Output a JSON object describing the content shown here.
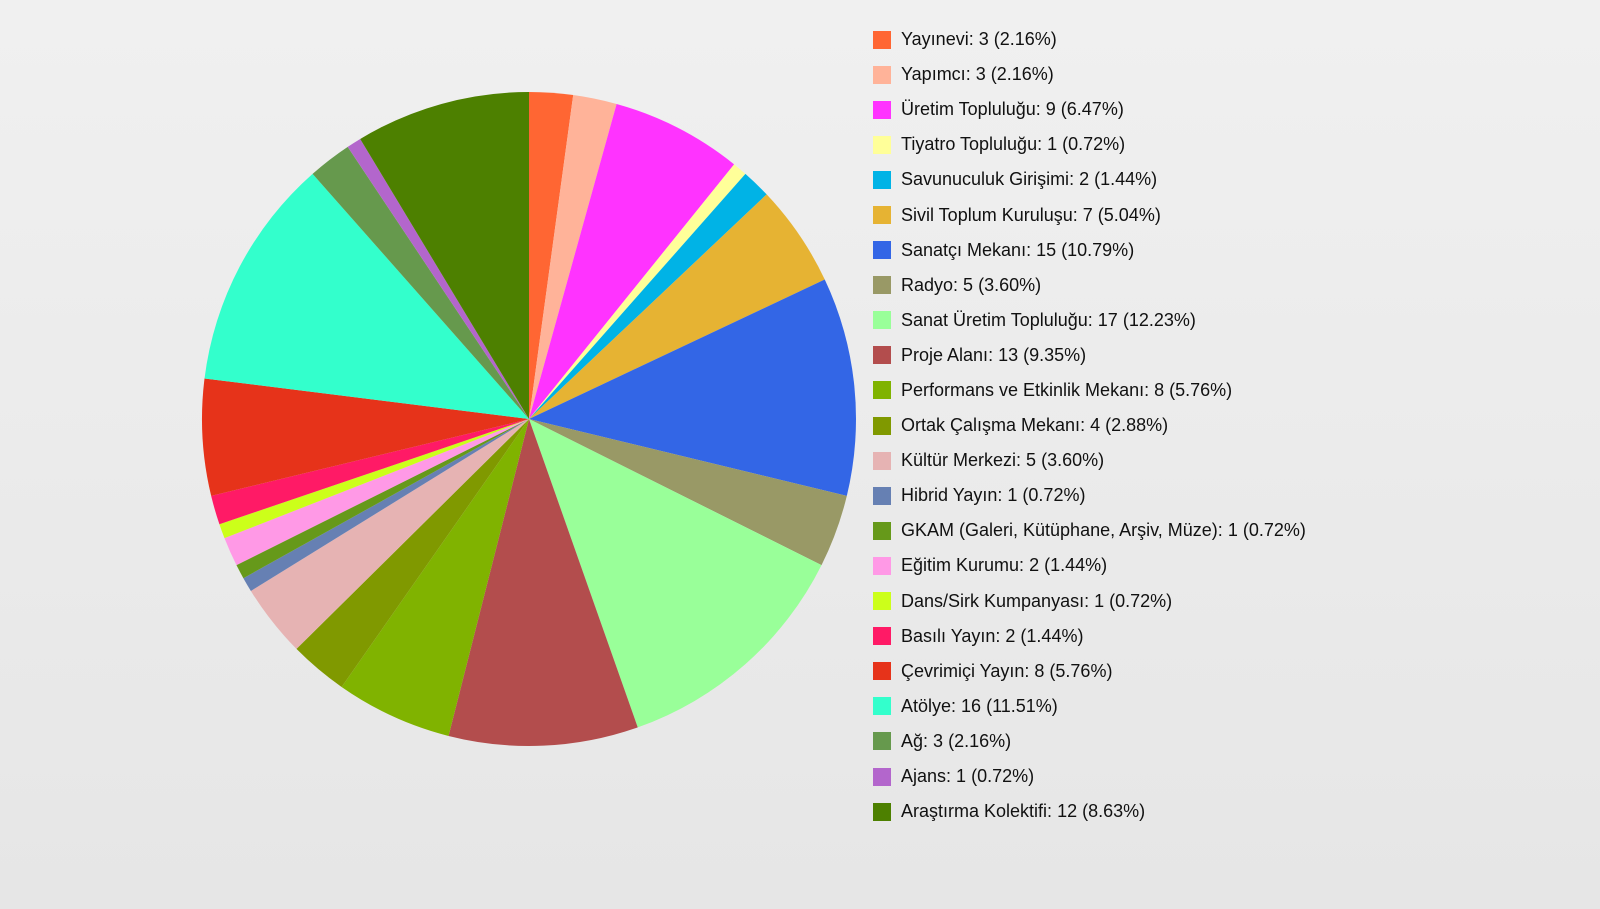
{
  "chart_data": {
    "type": "pie",
    "start": "top",
    "direction": "clockwise",
    "legend_placement": "right",
    "slices": [
      {
        "label": "Yayınevi",
        "value": 3,
        "percent": "2.16%",
        "color": "#ff6633"
      },
      {
        "label": "Yapımcı",
        "value": 3,
        "percent": "2.16%",
        "color": "#ffb399"
      },
      {
        "label": "Üretim Topluluğu",
        "value": 9,
        "percent": "6.47%",
        "color": "#ff33ff"
      },
      {
        "label": "Tiyatro Topluluğu",
        "value": 1,
        "percent": "0.72%",
        "color": "#ffff99"
      },
      {
        "label": "Savunuculuk Girişimi",
        "value": 2,
        "percent": "1.44%",
        "color": "#00b3e6"
      },
      {
        "label": "Sivil Toplum Kuruluşu",
        "value": 7,
        "percent": "5.04%",
        "color": "#e6b333"
      },
      {
        "label": "Sanatçı Mekanı",
        "value": 15,
        "percent": "10.79%",
        "color": "#3366e6"
      },
      {
        "label": "Radyo",
        "value": 5,
        "percent": "3.60%",
        "color": "#999966"
      },
      {
        "label": "Sanat Üretim Topluluğu",
        "value": 17,
        "percent": "12.23%",
        "color": "#99ff99"
      },
      {
        "label": "Proje Alanı",
        "value": 13,
        "percent": "9.35%",
        "color": "#b34d4d"
      },
      {
        "label": "Performans ve Etkinlik Mekanı",
        "value": 8,
        "percent": "5.76%",
        "color": "#80b300"
      },
      {
        "label": "Ortak Çalışma Mekanı",
        "value": 4,
        "percent": "2.88%",
        "color": "#809900"
      },
      {
        "label": "Kültür Merkezi",
        "value": 5,
        "percent": "3.60%",
        "color": "#e6b3b3"
      },
      {
        "label": "Hibrid Yayın",
        "value": 1,
        "percent": "0.72%",
        "color": "#6680b3"
      },
      {
        "label": "GKAM (Galeri, Kütüphane, Arşiv, Müze)",
        "value": 1,
        "percent": "0.72%",
        "color": "#66991a"
      },
      {
        "label": "Eğitim Kurumu",
        "value": 2,
        "percent": "1.44%",
        "color": "#ff99e6"
      },
      {
        "label": "Dans/Sirk Kumpanyası",
        "value": 1,
        "percent": "0.72%",
        "color": "#ccff1a"
      },
      {
        "label": "Basılı Yayın",
        "value": 2,
        "percent": "1.44%",
        "color": "#ff1a66"
      },
      {
        "label": "Çevrimiçi Yayın",
        "value": 8,
        "percent": "5.76%",
        "color": "#e6331a"
      },
      {
        "label": "Atölye",
        "value": 16,
        "percent": "11.51%",
        "color": "#33ffcc"
      },
      {
        "label": "Ağ",
        "value": 3,
        "percent": "2.16%",
        "color": "#66994d"
      },
      {
        "label": "Ajans",
        "value": 1,
        "percent": "0.72%",
        "color": "#b366cc"
      },
      {
        "label": "Araştırma Kolektifi",
        "value": 12,
        "percent": "8.63%",
        "color": "#4d8000"
      }
    ]
  }
}
